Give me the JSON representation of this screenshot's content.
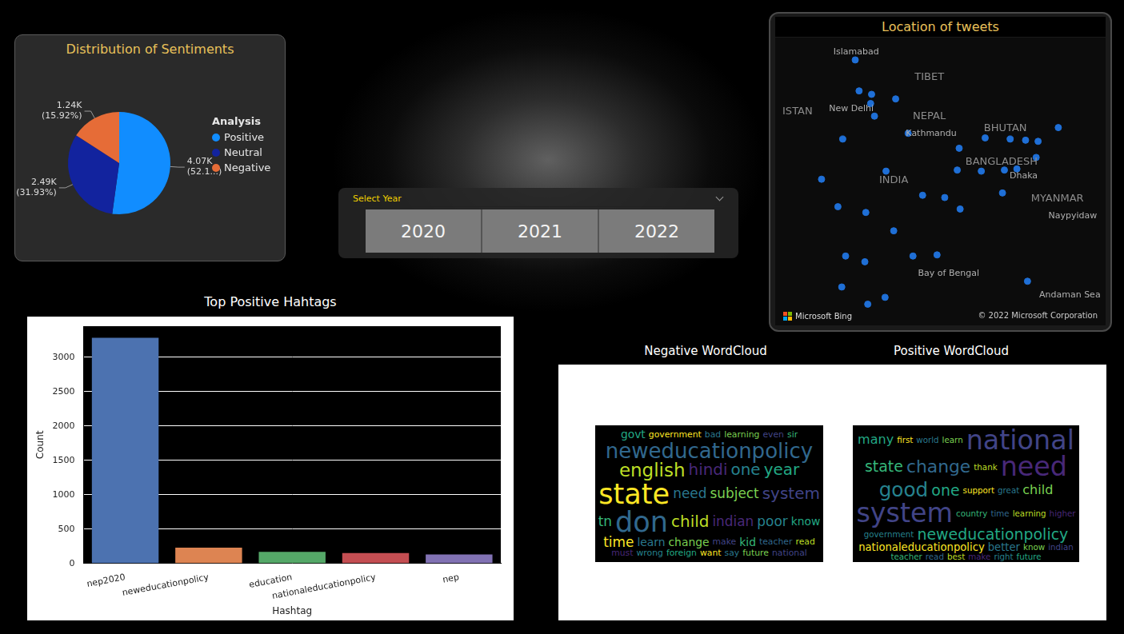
{
  "chart_data": [
    {
      "type": "pie",
      "title": "Distribution of Sentiments",
      "legend_title": "Analysis",
      "categories": [
        "Positive",
        "Neutral",
        "Negative"
      ],
      "values": [
        4070,
        2490,
        1240
      ],
      "value_labels": [
        "4.07K (52.1...)",
        "2.49K (31.93%)",
        "1.24K (15.92%)"
      ],
      "colors": [
        "#118DFF",
        "#12239E",
        "#E66C37"
      ],
      "legend": "right",
      "data_labels": true
    },
    {
      "type": "bar",
      "title": "Top Positive Hahtags",
      "x_label": "Hashtag",
      "y_label": "Count",
      "categories": [
        "nep2020",
        "neweducationpolicy",
        "education",
        "nationaleducationpolicy",
        "nep"
      ],
      "values": [
        3280,
        230,
        170,
        150,
        130
      ],
      "colors": [
        "#4c72b0",
        "#dd8452",
        "#55a868",
        "#c44e52",
        "#8172b3"
      ],
      "ylim": [
        0,
        3450
      ],
      "yticks": [
        0,
        500,
        1000,
        1500,
        2000,
        2500,
        3000
      ],
      "grid": true
    },
    {
      "type": "scatter",
      "title": "Location of tweets",
      "x": [
        73.0,
        73.4,
        74.7,
        74.6,
        77.2,
        75.0,
        78.5,
        71.7,
        83.8,
        86.5,
        89.1,
        90.7,
        92.0,
        94.1,
        69.5,
        76.2,
        71.2,
        80.0,
        74.1,
        82.3,
        83.6,
        86.1,
        88.5,
        89.8,
        91.8,
        88.3,
        83.9,
        77.0,
        72.0,
        74.0,
        79.0,
        81.5,
        71.6,
        76.1,
        74.3,
        90.9
      ],
      "values": [
        33.7,
        31.0,
        30.7,
        29.9,
        30.3,
        28.8,
        27.3,
        26.8,
        26.0,
        26.9,
        26.8,
        26.7,
        26.6,
        27.8,
        23.3,
        24.0,
        20.9,
        21.9,
        20.4,
        21.7,
        24.1,
        24.0,
        24.1,
        24.2,
        25.2,
        22.1,
        20.7,
        18.8,
        16.6,
        16.1,
        16.6,
        16.7,
        13.9,
        13.0,
        12.4,
        14.4
      ],
      "xlim": [
        65.1,
        98.6
      ],
      "ylim": [
        10.9,
        35.3
      ],
      "color": "#1f6fd6",
      "grid": false,
      "tick_labels": false,
      "annotations": [
        {
          "text": "Islamabad",
          "x": 73.1,
          "y": 34.4
        },
        {
          "text": "TIBET",
          "x": 80.7,
          "y": 32.2
        },
        {
          "text": "ISTAN",
          "x": 67.0,
          "y": 29.2
        },
        {
          "text": "New Delhi",
          "x": 72.6,
          "y": 29.4
        },
        {
          "text": "NEPAL",
          "x": 80.7,
          "y": 28.8
        },
        {
          "text": "Kathmandu",
          "x": 80.9,
          "y": 27.3
        },
        {
          "text": "BHUTAN",
          "x": 88.6,
          "y": 27.7
        },
        {
          "text": "BANGLADESH",
          "x": 88.2,
          "y": 24.8
        },
        {
          "text": "Dhaka",
          "x": 90.5,
          "y": 23.6
        },
        {
          "text": "INDIA",
          "x": 77.0,
          "y": 23.2
        },
        {
          "text": "MYANMAR",
          "x": 94.0,
          "y": 21.6
        },
        {
          "text": "Naypyidaw",
          "x": 95.6,
          "y": 20.1
        },
        {
          "text": "Bay of Bengal",
          "x": 82.7,
          "y": 15.1
        },
        {
          "text": "Andaman Sea",
          "x": 95.3,
          "y": 13.2
        }
      ],
      "attribution": [
        "Microsoft Bing",
        "© 2022 Microsoft Corporation"
      ]
    }
  ],
  "slicer": {
    "label": "Select Year",
    "options": [
      "2020",
      "2021",
      "2022"
    ]
  },
  "wordclouds": [
    {
      "title": "Negative WordCloud",
      "words": [
        {
          "text": "govt",
          "weight": 3
        },
        {
          "text": "government",
          "weight": 2
        },
        {
          "text": "bad",
          "weight": 2
        },
        {
          "text": "learning",
          "weight": 2
        },
        {
          "text": "even",
          "weight": 2
        },
        {
          "text": "sir",
          "weight": 2
        },
        {
          "text": "neweducationpolicy",
          "weight": 7
        },
        {
          "text": "english",
          "weight": 6
        },
        {
          "text": "hindi",
          "weight": 5
        },
        {
          "text": "one",
          "weight": 5
        },
        {
          "text": "year",
          "weight": 5
        },
        {
          "text": "state",
          "weight": 10
        },
        {
          "text": "need",
          "weight": 4
        },
        {
          "text": "subject",
          "weight": 4
        },
        {
          "text": "system",
          "weight": 5
        },
        {
          "text": "tn",
          "weight": 4
        },
        {
          "text": "don",
          "weight": 10
        },
        {
          "text": "child",
          "weight": 5
        },
        {
          "text": "indian",
          "weight": 4
        },
        {
          "text": "poor",
          "weight": 4
        },
        {
          "text": "know",
          "weight": 3
        },
        {
          "text": "time",
          "weight": 4
        },
        {
          "text": "learn",
          "weight": 3
        },
        {
          "text": "change",
          "weight": 3
        },
        {
          "text": "make",
          "weight": 2
        },
        {
          "text": "kid",
          "weight": 3
        },
        {
          "text": "teacher",
          "weight": 2
        },
        {
          "text": "read",
          "weight": 2
        },
        {
          "text": "must",
          "weight": 2
        },
        {
          "text": "wrong",
          "weight": 2
        },
        {
          "text": "foreign",
          "weight": 2
        },
        {
          "text": "want",
          "weight": 2
        },
        {
          "text": "say",
          "weight": 2
        },
        {
          "text": "future",
          "weight": 2
        },
        {
          "text": "national",
          "weight": 2
        }
      ]
    },
    {
      "title": "Positive WordCloud",
      "words": [
        {
          "text": "many",
          "weight": 4
        },
        {
          "text": "first",
          "weight": 2
        },
        {
          "text": "world",
          "weight": 2
        },
        {
          "text": "learn",
          "weight": 2
        },
        {
          "text": "national",
          "weight": 10
        },
        {
          "text": "state",
          "weight": 5
        },
        {
          "text": "change",
          "weight": 6
        },
        {
          "text": "thank",
          "weight": 2
        },
        {
          "text": "need",
          "weight": 10
        },
        {
          "text": "good",
          "weight": 7
        },
        {
          "text": "one",
          "weight": 5
        },
        {
          "text": "support",
          "weight": 2
        },
        {
          "text": "great",
          "weight": 2
        },
        {
          "text": "child",
          "weight": 4
        },
        {
          "text": "system",
          "weight": 10
        },
        {
          "text": "country",
          "weight": 2
        },
        {
          "text": "time",
          "weight": 2
        },
        {
          "text": "learning",
          "weight": 2
        },
        {
          "text": "higher",
          "weight": 2
        },
        {
          "text": "government",
          "weight": 2
        },
        {
          "text": "neweducationpolicy",
          "weight": 5
        },
        {
          "text": "nationaleducationpolicy",
          "weight": 3
        },
        {
          "text": "better",
          "weight": 3
        },
        {
          "text": "know",
          "weight": 2
        },
        {
          "text": "indian",
          "weight": 2
        },
        {
          "text": "teacher",
          "weight": 2
        },
        {
          "text": "read",
          "weight": 2
        },
        {
          "text": "best",
          "weight": 2
        },
        {
          "text": "make",
          "weight": 2
        },
        {
          "text": "right",
          "weight": 2
        },
        {
          "text": "future",
          "weight": 2
        }
      ]
    }
  ]
}
